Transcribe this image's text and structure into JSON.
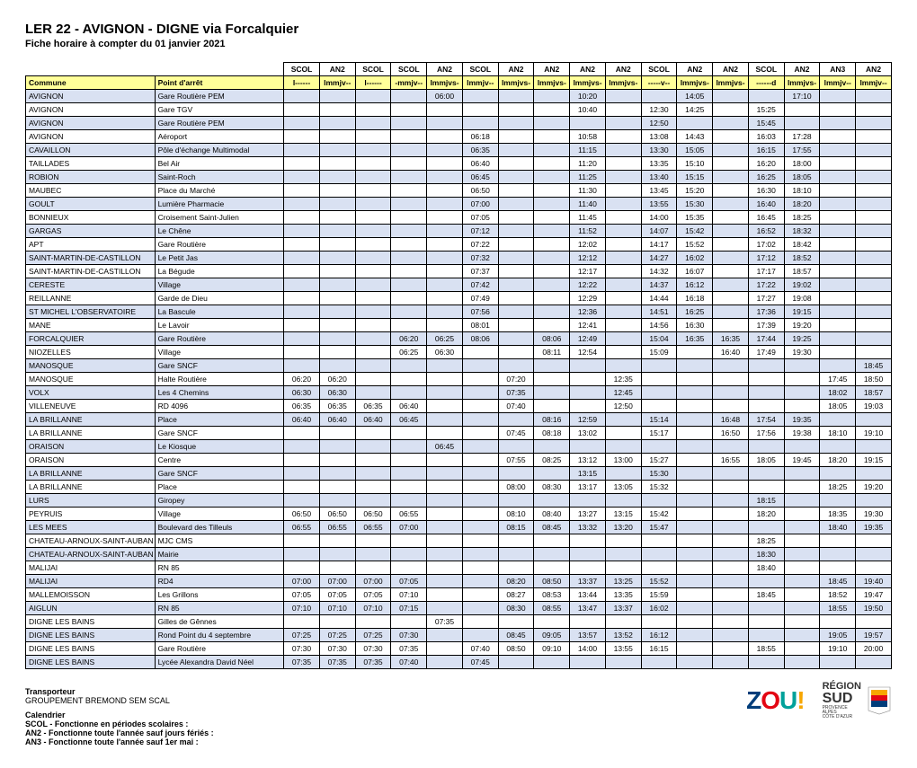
{
  "title": "LER 22 - AVIGNON - DIGNE via Forcalquier",
  "subtitle": "Fiche horaire à compter du 01 janvier 2021",
  "header_service": [
    "SCOL",
    "AN2",
    "SCOL",
    "SCOL",
    "AN2",
    "SCOL",
    "AN2",
    "AN2",
    "AN2",
    "AN2",
    "SCOL",
    "AN2",
    "AN2",
    "SCOL",
    "AN2",
    "AN3",
    "AN2"
  ],
  "label_commune": "Commune",
  "label_arret": "Point d'arrêt",
  "header_days": [
    "l------",
    "lmmjv--",
    "l------",
    "-mmjv--",
    "lmmjvs-",
    "lmmjv--",
    "lmmjvs-",
    "lmmjvs-",
    "lmmjvs-",
    "lmmjvs-",
    "-----v--",
    "lmmjvs-",
    "lmmjvs-",
    "------d",
    "lmmjvs-",
    "lmmjv--",
    "lmmjv--"
  ],
  "rows": [
    {
      "commune": "AVIGNON",
      "arret": "Gare Routière PEM",
      "times": [
        "",
        "",
        "",
        "",
        "06:00",
        "",
        "",
        "",
        "10:20",
        "",
        "",
        "14:05",
        "",
        "",
        "17:10",
        "",
        ""
      ]
    },
    {
      "commune": "AVIGNON",
      "arret": "Gare TGV",
      "times": [
        "",
        "",
        "",
        "",
        "",
        "",
        "",
        "",
        "10:40",
        "",
        "12:30",
        "14:25",
        "",
        "15:25",
        "",
        "",
        ""
      ]
    },
    {
      "commune": "AVIGNON",
      "arret": "Gare Routière PEM",
      "times": [
        "",
        "",
        "",
        "",
        "",
        "",
        "",
        "",
        "",
        "",
        "12:50",
        "",
        "",
        "15:45",
        "",
        "",
        ""
      ]
    },
    {
      "commune": "AVIGNON",
      "arret": "Aéroport",
      "times": [
        "",
        "",
        "",
        "",
        "",
        "06:18",
        "",
        "",
        "10:58",
        "",
        "13:08",
        "14:43",
        "",
        "16:03",
        "17:28",
        "",
        ""
      ]
    },
    {
      "commune": "CAVAILLON",
      "arret": "Pôle d'échange Multimodal",
      "times": [
        "",
        "",
        "",
        "",
        "",
        "06:35",
        "",
        "",
        "11:15",
        "",
        "13:30",
        "15:05",
        "",
        "16:15",
        "17:55",
        "",
        ""
      ]
    },
    {
      "commune": "TAILLADES",
      "arret": "Bel Air",
      "times": [
        "",
        "",
        "",
        "",
        "",
        "06:40",
        "",
        "",
        "11:20",
        "",
        "13:35",
        "15:10",
        "",
        "16:20",
        "18:00",
        "",
        ""
      ]
    },
    {
      "commune": "ROBION",
      "arret": "Saint-Roch",
      "times": [
        "",
        "",
        "",
        "",
        "",
        "06:45",
        "",
        "",
        "11:25",
        "",
        "13:40",
        "15:15",
        "",
        "16:25",
        "18:05",
        "",
        ""
      ]
    },
    {
      "commune": "MAUBEC",
      "arret": "Place du Marché",
      "times": [
        "",
        "",
        "",
        "",
        "",
        "06:50",
        "",
        "",
        "11:30",
        "",
        "13:45",
        "15:20",
        "",
        "16:30",
        "18:10",
        "",
        ""
      ]
    },
    {
      "commune": "GOULT",
      "arret": "Lumière Pharmacie",
      "times": [
        "",
        "",
        "",
        "",
        "",
        "07:00",
        "",
        "",
        "11:40",
        "",
        "13:55",
        "15:30",
        "",
        "16:40",
        "18:20",
        "",
        ""
      ]
    },
    {
      "commune": "BONNIEUX",
      "arret": "Croisement Saint-Julien",
      "times": [
        "",
        "",
        "",
        "",
        "",
        "07:05",
        "",
        "",
        "11:45",
        "",
        "14:00",
        "15:35",
        "",
        "16:45",
        "18:25",
        "",
        ""
      ]
    },
    {
      "commune": "GARGAS",
      "arret": "Le Chêne",
      "times": [
        "",
        "",
        "",
        "",
        "",
        "07:12",
        "",
        "",
        "11:52",
        "",
        "14:07",
        "15:42",
        "",
        "16:52",
        "18:32",
        "",
        ""
      ]
    },
    {
      "commune": "APT",
      "arret": "Gare Routière",
      "times": [
        "",
        "",
        "",
        "",
        "",
        "07:22",
        "",
        "",
        "12:02",
        "",
        "14:17",
        "15:52",
        "",
        "17:02",
        "18:42",
        "",
        ""
      ]
    },
    {
      "commune": "SAINT-MARTIN-DE-CASTILLON",
      "arret": "Le Petit Jas",
      "times": [
        "",
        "",
        "",
        "",
        "",
        "07:32",
        "",
        "",
        "12:12",
        "",
        "14:27",
        "16:02",
        "",
        "17:12",
        "18:52",
        "",
        ""
      ]
    },
    {
      "commune": "SAINT-MARTIN-DE-CASTILLON",
      "arret": "La Bégude",
      "times": [
        "",
        "",
        "",
        "",
        "",
        "07:37",
        "",
        "",
        "12:17",
        "",
        "14:32",
        "16:07",
        "",
        "17:17",
        "18:57",
        "",
        ""
      ]
    },
    {
      "commune": "CERESTE",
      "arret": "Village",
      "times": [
        "",
        "",
        "",
        "",
        "",
        "07:42",
        "",
        "",
        "12:22",
        "",
        "14:37",
        "16:12",
        "",
        "17:22",
        "19:02",
        "",
        ""
      ]
    },
    {
      "commune": "REILLANNE",
      "arret": "Garde de Dieu",
      "times": [
        "",
        "",
        "",
        "",
        "",
        "07:49",
        "",
        "",
        "12:29",
        "",
        "14:44",
        "16:18",
        "",
        "17:27",
        "19:08",
        "",
        ""
      ]
    },
    {
      "commune": "ST MICHEL L'OBSERVATOIRE",
      "arret": "La Bascule",
      "times": [
        "",
        "",
        "",
        "",
        "",
        "07:56",
        "",
        "",
        "12:36",
        "",
        "14:51",
        "16:25",
        "",
        "17:36",
        "19:15",
        "",
        ""
      ]
    },
    {
      "commune": "MANE",
      "arret": "Le Lavoir",
      "times": [
        "",
        "",
        "",
        "",
        "",
        "08:01",
        "",
        "",
        "12:41",
        "",
        "14:56",
        "16:30",
        "",
        "17:39",
        "19:20",
        "",
        ""
      ]
    },
    {
      "commune": "FORCALQUIER",
      "arret": "Gare Routière",
      "times": [
        "",
        "",
        "",
        "06:20",
        "06:25",
        "08:06",
        "",
        "08:06",
        "12:49",
        "",
        "15:04",
        "16:35",
        "16:35",
        "17:44",
        "19:25",
        "",
        ""
      ]
    },
    {
      "commune": "NIOZELLES",
      "arret": "Village",
      "times": [
        "",
        "",
        "",
        "06:25",
        "06:30",
        "",
        "",
        "08:11",
        "12:54",
        "",
        "15:09",
        "",
        "16:40",
        "17:49",
        "19:30",
        "",
        ""
      ]
    },
    {
      "commune": "MANOSQUE",
      "arret": "Gare SNCF",
      "times": [
        "",
        "",
        "",
        "",
        "",
        "",
        "",
        "",
        "",
        "",
        "",
        "",
        "",
        "",
        "",
        "",
        "18:45"
      ]
    },
    {
      "commune": "MANOSQUE",
      "arret": "Halte Routière",
      "times": [
        "06:20",
        "06:20",
        "",
        "",
        "",
        "",
        "07:20",
        "",
        "",
        "12:35",
        "",
        "",
        "",
        "",
        "",
        "17:45",
        "18:50"
      ]
    },
    {
      "commune": "VOLX",
      "arret": "Les 4 Chemins",
      "times": [
        "06:30",
        "06:30",
        "",
        "",
        "",
        "",
        "07:35",
        "",
        "",
        "12:45",
        "",
        "",
        "",
        "",
        "",
        "18:02",
        "18:57"
      ]
    },
    {
      "commune": "VILLENEUVE",
      "arret": "RD 4096",
      "times": [
        "06:35",
        "06:35",
        "06:35",
        "06:40",
        "",
        "",
        "07:40",
        "",
        "",
        "12:50",
        "",
        "",
        "",
        "",
        "",
        "18:05",
        "19:03"
      ]
    },
    {
      "commune": "LA BRILLANNE",
      "arret": "Place",
      "times": [
        "06:40",
        "06:40",
        "06:40",
        "06:45",
        "",
        "",
        "",
        "08:16",
        "12:59",
        "",
        "15:14",
        "",
        "16:48",
        "17:54",
        "19:35",
        "",
        ""
      ]
    },
    {
      "commune": "LA BRILLANNE",
      "arret": "Gare SNCF",
      "times": [
        "",
        "",
        "",
        "",
        "",
        "",
        "07:45",
        "08:18",
        "13:02",
        "",
        "15:17",
        "",
        "16:50",
        "17:56",
        "19:38",
        "18:10",
        "19:10"
      ]
    },
    {
      "commune": "ORAISON",
      "arret": "Le Kiosque",
      "times": [
        "",
        "",
        "",
        "",
        "06:45",
        "",
        "",
        "",
        "",
        "",
        "",
        "",
        "",
        "",
        "",
        "",
        ""
      ]
    },
    {
      "commune": "ORAISON",
      "arret": "Centre",
      "times": [
        "",
        "",
        "",
        "",
        "",
        "",
        "07:55",
        "08:25",
        "13:12",
        "13:00",
        "15:27",
        "",
        "16:55",
        "18:05",
        "19:45",
        "18:20",
        "19:15"
      ]
    },
    {
      "commune": "LA BRILLANNE",
      "arret": "Gare SNCF",
      "times": [
        "",
        "",
        "",
        "",
        "",
        "",
        "",
        "",
        "13:15",
        "",
        "15:30",
        "",
        "",
        "",
        "",
        "",
        ""
      ]
    },
    {
      "commune": "LA BRILLANNE",
      "arret": "Place",
      "times": [
        "",
        "",
        "",
        "",
        "",
        "",
        "08:00",
        "08:30",
        "13:17",
        "13:05",
        "15:32",
        "",
        "",
        "",
        "",
        "18:25",
        "19:20"
      ]
    },
    {
      "commune": "LURS",
      "arret": "Giropey",
      "times": [
        "",
        "",
        "",
        "",
        "",
        "",
        "",
        "",
        "",
        "",
        "",
        "",
        "",
        "18:15",
        "",
        "",
        ""
      ]
    },
    {
      "commune": "PEYRUIS",
      "arret": "Village",
      "times": [
        "06:50",
        "06:50",
        "06:50",
        "06:55",
        "",
        "",
        "08:10",
        "08:40",
        "13:27",
        "13:15",
        "15:42",
        "",
        "",
        "18:20",
        "",
        "18:35",
        "19:30"
      ]
    },
    {
      "commune": "LES MEES",
      "arret": "Boulevard des Tilleuls",
      "times": [
        "06:55",
        "06:55",
        "06:55",
        "07:00",
        "",
        "",
        "08:15",
        "08:45",
        "13:32",
        "13:20",
        "15:47",
        "",
        "",
        "",
        "",
        "18:40",
        "19:35"
      ]
    },
    {
      "commune": "CHATEAU-ARNOUX-SAINT-AUBAN",
      "arret": "MJC CMS",
      "times": [
        "",
        "",
        "",
        "",
        "",
        "",
        "",
        "",
        "",
        "",
        "",
        "",
        "",
        "18:25",
        "",
        "",
        ""
      ]
    },
    {
      "commune": "CHATEAU-ARNOUX-SAINT-AUBAN",
      "arret": "Mairie",
      "times": [
        "",
        "",
        "",
        "",
        "",
        "",
        "",
        "",
        "",
        "",
        "",
        "",
        "",
        "18:30",
        "",
        "",
        ""
      ]
    },
    {
      "commune": "MALIJAI",
      "arret": "RN 85",
      "times": [
        "",
        "",
        "",
        "",
        "",
        "",
        "",
        "",
        "",
        "",
        "",
        "",
        "",
        "18:40",
        "",
        "",
        ""
      ]
    },
    {
      "commune": "MALIJAI",
      "arret": "RD4",
      "times": [
        "07:00",
        "07:00",
        "07:00",
        "07:05",
        "",
        "",
        "08:20",
        "08:50",
        "13:37",
        "13:25",
        "15:52",
        "",
        "",
        "",
        "",
        "18:45",
        "19:40"
      ]
    },
    {
      "commune": "MALLEMOISSON",
      "arret": "Les Grillons",
      "times": [
        "07:05",
        "07:05",
        "07:05",
        "07:10",
        "",
        "",
        "08:27",
        "08:53",
        "13:44",
        "13:35",
        "15:59",
        "",
        "",
        "18:45",
        "",
        "18:52",
        "19:47"
      ]
    },
    {
      "commune": "AIGLUN",
      "arret": "RN 85",
      "times": [
        "07:10",
        "07:10",
        "07:10",
        "07:15",
        "",
        "",
        "08:30",
        "08:55",
        "13:47",
        "13:37",
        "16:02",
        "",
        "",
        "",
        "",
        "18:55",
        "19:50"
      ]
    },
    {
      "commune": "DIGNE LES BAINS",
      "arret": "Gilles de Gênnes",
      "times": [
        "",
        "",
        "",
        "",
        "07:35",
        "",
        "",
        "",
        "",
        "",
        "",
        "",
        "",
        "",
        "",
        "",
        ""
      ]
    },
    {
      "commune": "DIGNE LES BAINS",
      "arret": "Rond Point du 4 septembre",
      "times": [
        "07:25",
        "07:25",
        "07:25",
        "07:30",
        "",
        "",
        "08:45",
        "09:05",
        "13:57",
        "13:52",
        "16:12",
        "",
        "",
        "",
        "",
        "19:05",
        "19:57"
      ]
    },
    {
      "commune": "DIGNE LES BAINS",
      "arret": "Gare Routière",
      "times": [
        "07:30",
        "07:30",
        "07:30",
        "07:35",
        "",
        "07:40",
        "08:50",
        "09:10",
        "14:00",
        "13:55",
        "16:15",
        "",
        "",
        "18:55",
        "",
        "19:10",
        "20:00"
      ]
    },
    {
      "commune": "DIGNE LES BAINS",
      "arret": "Lycée Alexandra David Néel",
      "times": [
        "07:35",
        "07:35",
        "07:35",
        "07:40",
        "",
        "07:45",
        "",
        "",
        "",
        "",
        "",
        "",
        "",
        "",
        "",
        "",
        ""
      ]
    }
  ],
  "footer": {
    "transporteur_label": "Transporteur",
    "transporteur_value": "GROUPEMENT BREMOND SEM SCAL",
    "calendrier_label": "Calendrier",
    "scol": "SCOL - Fonctionne en périodes scolaires :",
    "an2": "AN2 - Fonctionne toute l'année sauf jours fériés :",
    "an3": "AN3 - Fonctionne toute l'année sauf 1er mai :"
  },
  "logos": {
    "region_top": "RÉGION",
    "region_bottom": "SUD"
  },
  "colors": {
    "band": "#d9e1f2",
    "label_row": "#ffff99"
  }
}
